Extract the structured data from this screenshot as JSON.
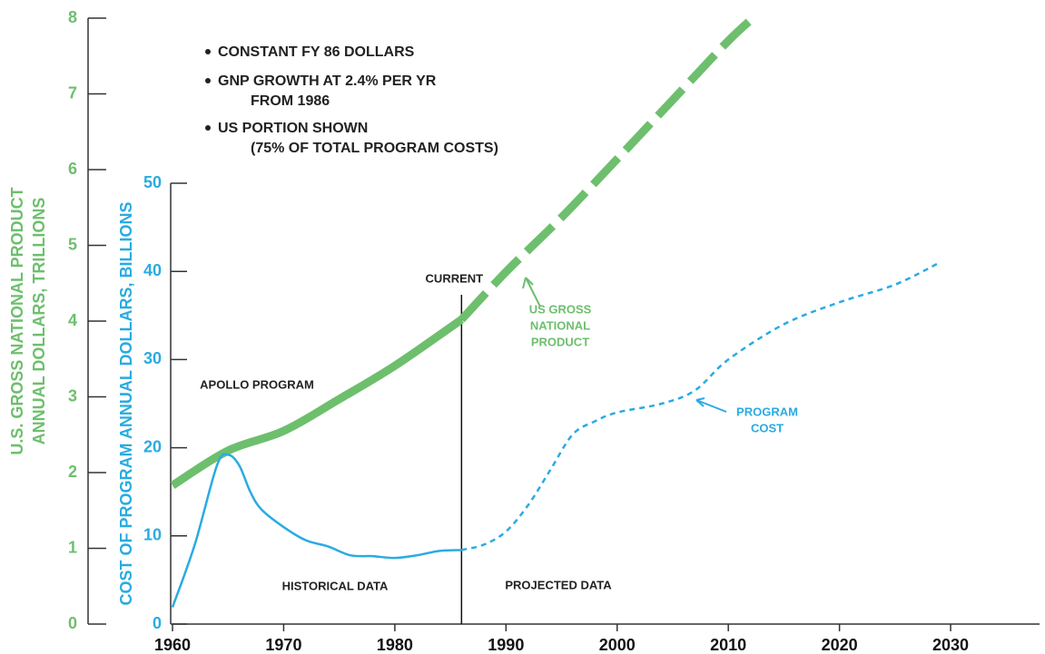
{
  "chart_data": {
    "type": "line",
    "notes": [
      [
        "CONSTANT FY 86 DOLLARS"
      ],
      [
        "GNP GROWTH AT 2.4% PER YR",
        "FROM 1986"
      ],
      [
        "US PORTION SHOWN",
        "(75% OF TOTAL PROGRAM COSTS)"
      ]
    ],
    "y_label": [
      "U.S. GROSS NATIONAL PRODUCT",
      "ANNUAL DOLLARS, TRILLIONS"
    ],
    "y2_label": "COST OF PROGRAM ANNUAL DOLLARS, BILLIONS",
    "xlim": [
      1960,
      2038
    ],
    "xticks": [
      1960,
      1970,
      1980,
      1990,
      2000,
      2010,
      2020,
      2030
    ],
    "ylim": [
      0,
      8
    ],
    "yticks": [
      0,
      1,
      2,
      3,
      4,
      5,
      6,
      7,
      8
    ],
    "y2lim": [
      0,
      50
    ],
    "y2ticks": [
      0,
      10,
      20,
      30,
      40,
      50
    ],
    "series": [
      {
        "name": [
          "US GROSS",
          "NATIONAL",
          "PRODUCT"
        ],
        "color": "#6dbf6d",
        "x": [
          1960,
          1965,
          1970,
          1975,
          1980,
          1986,
          1990,
          1995,
          2000,
          2005,
          2010,
          2013
        ],
        "values": [
          1.83,
          2.29,
          2.55,
          2.97,
          3.41,
          4.02,
          4.65,
          5.37,
          6.14,
          6.92,
          7.7,
          8.1
        ]
      },
      {
        "name": [
          "PROGRAM",
          "COST"
        ],
        "color": "#29abe2",
        "axis": "y2",
        "x": [
          1960,
          1962,
          1964,
          1965,
          1966,
          1967,
          1968,
          1970,
          1972,
          1974,
          1976,
          1978,
          1980,
          1982,
          1984,
          1986,
          1988,
          1990,
          1992,
          1994,
          1996,
          1998,
          2000,
          2004,
          2007,
          2010,
          2015,
          2020,
          2025,
          2029
        ],
        "values": [
          1.9,
          9,
          18,
          19.2,
          18,
          15,
          13,
          11,
          9.5,
          8.8,
          7.8,
          7.7,
          7.5,
          7.8,
          8.3,
          8.4,
          9,
          10.5,
          13.5,
          17.5,
          21.5,
          23,
          24,
          25,
          26.5,
          30,
          34,
          36.5,
          38.5,
          41
        ]
      }
    ],
    "current": {
      "text": "CURRENT",
      "x": 1986
    },
    "annotations": [
      "APOLLO PROGRAM",
      "HISTORICAL DATA",
      "PROJECTED DATA"
    ]
  }
}
